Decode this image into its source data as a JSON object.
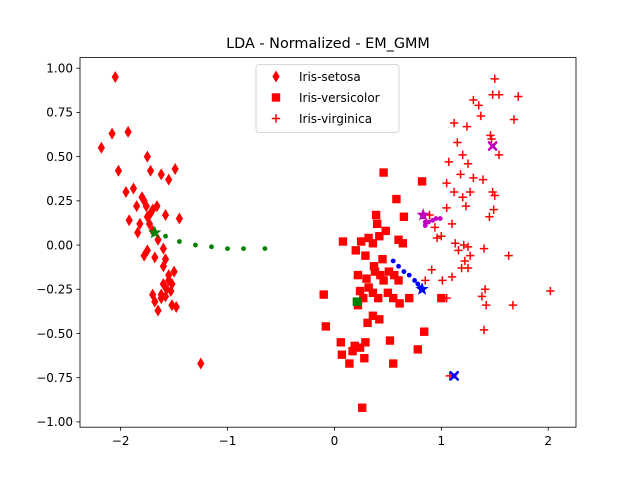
{
  "chart_data": {
    "type": "scatter",
    "title": "LDA - Normalized - EM_GMM",
    "xlabel": "",
    "ylabel": "",
    "xlim": [
      -2.38,
      2.26
    ],
    "ylim": [
      -1.03,
      1.06
    ],
    "xticks": [
      -2,
      -1,
      0,
      1,
      2
    ],
    "xtick_labels": [
      "−2",
      "−1",
      "0",
      "1",
      "2"
    ],
    "yticks": [
      -1.0,
      -0.75,
      -0.5,
      -0.25,
      0.0,
      0.25,
      0.5,
      0.75,
      1.0
    ],
    "ytick_labels": [
      "−1.00",
      "−0.75",
      "−0.50",
      "−0.25",
      "0.00",
      "0.25",
      "0.50",
      "0.75",
      "1.00"
    ],
    "grid": false,
    "legend_position": "top-center",
    "series": [
      {
        "name": "Iris-setosa",
        "marker": "diamond",
        "color": "#ff0000",
        "points": [
          [
            -2.05,
            0.95
          ],
          [
            -2.18,
            0.55
          ],
          [
            -2.08,
            0.63
          ],
          [
            -2.02,
            0.42
          ],
          [
            -1.93,
            0.64
          ],
          [
            -1.75,
            0.5
          ],
          [
            -1.72,
            0.42
          ],
          [
            -1.95,
            0.3
          ],
          [
            -1.88,
            0.32
          ],
          [
            -1.8,
            0.27
          ],
          [
            -1.78,
            0.25
          ],
          [
            -1.76,
            0.22
          ],
          [
            -1.72,
            0.18
          ],
          [
            -1.7,
            0.2
          ],
          [
            -1.75,
            0.16
          ],
          [
            -1.82,
            0.12
          ],
          [
            -1.85,
            0.22
          ],
          [
            -1.92,
            0.14
          ],
          [
            -1.62,
            0.4
          ],
          [
            -1.55,
            0.37
          ],
          [
            -1.49,
            0.43
          ],
          [
            -1.45,
            0.15
          ],
          [
            -1.58,
            0.17
          ],
          [
            -1.7,
            0.08
          ],
          [
            -1.65,
            0.03
          ],
          [
            -1.6,
            -0.02
          ],
          [
            -1.68,
            -0.07
          ],
          [
            -1.75,
            -0.03
          ],
          [
            -1.78,
            -0.06
          ],
          [
            -1.6,
            -0.12
          ],
          [
            -1.55,
            -0.17
          ],
          [
            -1.52,
            -0.22
          ],
          [
            -1.57,
            -0.25
          ],
          [
            -1.62,
            -0.28
          ],
          [
            -1.58,
            -0.29
          ],
          [
            -1.68,
            -0.32
          ],
          [
            -1.65,
            -0.37
          ],
          [
            -1.52,
            -0.34
          ],
          [
            -1.48,
            -0.35
          ],
          [
            -1.55,
            -0.2
          ],
          [
            -1.7,
            -0.28
          ],
          [
            -1.5,
            -0.15
          ],
          [
            -1.25,
            -0.67
          ],
          [
            -1.84,
            0.07
          ],
          [
            -1.58,
            -0.08
          ],
          [
            -1.73,
            0.12
          ],
          [
            -1.66,
            0.22
          ],
          [
            -1.62,
            -0.3
          ],
          [
            -1.53,
            -0.26
          ],
          [
            -1.6,
            -0.22
          ]
        ]
      },
      {
        "name": "Iris-versicolor",
        "marker": "square",
        "color": "#ff0000",
        "points": [
          [
            0.46,
            0.41
          ],
          [
            0.82,
            0.36
          ],
          [
            0.58,
            0.26
          ],
          [
            0.39,
            0.17
          ],
          [
            0.4,
            0.12
          ],
          [
            0.42,
            0.05
          ],
          [
            0.48,
            0.08
          ],
          [
            0.32,
            0.04
          ],
          [
            0.25,
            0.02
          ],
          [
            0.36,
            0.01
          ],
          [
            0.6,
            0.03
          ],
          [
            0.64,
            0.01
          ],
          [
            0.08,
            0.02
          ],
          [
            0.2,
            -0.03
          ],
          [
            0.29,
            -0.06
          ],
          [
            0.37,
            -0.12
          ],
          [
            0.45,
            -0.08
          ],
          [
            0.51,
            -0.15
          ],
          [
            0.56,
            -0.17
          ],
          [
            0.6,
            -0.2
          ],
          [
            0.22,
            -0.17
          ],
          [
            0.3,
            -0.19
          ],
          [
            0.38,
            -0.15
          ],
          [
            0.43,
            -0.17
          ],
          [
            0.46,
            -0.2
          ],
          [
            0.32,
            -0.24
          ],
          [
            0.36,
            -0.27
          ],
          [
            0.41,
            -0.3
          ],
          [
            0.5,
            -0.27
          ],
          [
            0.55,
            -0.3
          ],
          [
            0.61,
            -0.33
          ],
          [
            0.7,
            -0.3
          ],
          [
            0.27,
            -0.3
          ],
          [
            0.22,
            -0.34
          ],
          [
            0.36,
            -0.4
          ],
          [
            0.42,
            -0.42
          ],
          [
            0.31,
            -0.44
          ],
          [
            -0.1,
            -0.28
          ],
          [
            -0.08,
            -0.46
          ],
          [
            0.06,
            -0.55
          ],
          [
            0.19,
            -0.57
          ],
          [
            0.24,
            -0.58
          ],
          [
            0.29,
            -0.55
          ],
          [
            0.17,
            -0.6
          ],
          [
            0.07,
            -0.62
          ],
          [
            0.14,
            -0.67
          ],
          [
            0.28,
            -0.64
          ],
          [
            0.52,
            -0.54
          ],
          [
            0.55,
            -0.67
          ],
          [
            0.78,
            -0.59
          ],
          [
            0.84,
            -0.49
          ],
          [
            1.0,
            -0.3
          ],
          [
            0.26,
            -0.92
          ],
          [
            0.65,
            0.16
          ],
          [
            0.24,
            -0.26
          ]
        ]
      },
      {
        "name": "Iris-virginica",
        "marker": "plus",
        "color": "#ff0000",
        "points": [
          [
            1.5,
            0.94
          ],
          [
            1.48,
            0.85
          ],
          [
            1.54,
            0.85
          ],
          [
            1.72,
            0.84
          ],
          [
            1.3,
            0.82
          ],
          [
            1.37,
            0.73
          ],
          [
            1.12,
            0.69
          ],
          [
            1.47,
            0.6
          ],
          [
            1.54,
            0.51
          ],
          [
            1.24,
            0.67
          ],
          [
            1.68,
            0.71
          ],
          [
            1.07,
            0.47
          ],
          [
            1.2,
            0.51
          ],
          [
            1.25,
            0.46
          ],
          [
            1.18,
            0.4
          ],
          [
            1.3,
            0.38
          ],
          [
            1.39,
            0.37
          ],
          [
            1.05,
            0.35
          ],
          [
            1.12,
            0.3
          ],
          [
            1.2,
            0.27
          ],
          [
            1.27,
            0.3
          ],
          [
            1.48,
            0.3
          ],
          [
            1.5,
            0.28
          ],
          [
            1.45,
            0.16
          ],
          [
            1.49,
            0.2
          ],
          [
            1.23,
            0.22
          ],
          [
            1.05,
            0.21
          ],
          [
            1.1,
            0.12
          ],
          [
            0.94,
            0.1
          ],
          [
            1.0,
            0.05
          ],
          [
            1.13,
            0.01
          ],
          [
            1.21,
            0.0
          ],
          [
            1.16,
            -0.03
          ],
          [
            1.25,
            -0.01
          ],
          [
            1.22,
            -0.09
          ],
          [
            1.25,
            -0.13
          ],
          [
            1.19,
            -0.13
          ],
          [
            1.27,
            -0.06
          ],
          [
            1.4,
            -0.02
          ],
          [
            1.63,
            -0.06
          ],
          [
            1.1,
            -0.18
          ],
          [
            1.01,
            -0.2
          ],
          [
            1.41,
            -0.25
          ],
          [
            1.38,
            -0.29
          ],
          [
            1.42,
            -0.34
          ],
          [
            1.67,
            -0.34
          ],
          [
            2.02,
            -0.26
          ],
          [
            1.05,
            -0.3
          ],
          [
            1.4,
            -0.48
          ],
          [
            1.08,
            -0.74
          ],
          [
            0.89,
            0.17
          ],
          [
            0.96,
            0.04
          ],
          [
            0.85,
            -0.2
          ],
          [
            0.91,
            -0.14
          ],
          [
            1.46,
            0.62
          ],
          [
            1.35,
            0.79
          ],
          [
            1.15,
            0.58
          ]
        ]
      }
    ],
    "paths": [
      {
        "color": "#008000",
        "points": [
          [
            -1.68,
            0.07
          ],
          [
            -1.58,
            0.05
          ],
          [
            -1.45,
            0.02
          ],
          [
            -1.3,
            0.0
          ],
          [
            -1.15,
            -0.01
          ],
          [
            -1.0,
            -0.02
          ],
          [
            -0.85,
            -0.02
          ],
          [
            -0.65,
            -0.02
          ]
        ]
      },
      {
        "color": "#0000ff",
        "points": [
          [
            1.12,
            -0.74
          ],
          [
            0.55,
            -0.09
          ],
          [
            0.6,
            -0.12
          ],
          [
            0.65,
            -0.15
          ],
          [
            0.7,
            -0.17
          ],
          [
            0.75,
            -0.2
          ],
          [
            0.78,
            -0.22
          ],
          [
            0.8,
            -0.24
          ]
        ]
      },
      {
        "color": "#bf00bf",
        "points": [
          [
            1.48,
            0.56
          ],
          [
            0.83,
            0.16
          ],
          [
            0.85,
            0.13
          ],
          [
            0.88,
            0.13
          ],
          [
            0.92,
            0.14
          ],
          [
            0.95,
            0.15
          ],
          [
            0.99,
            0.15
          ],
          [
            0.85,
            0.11
          ]
        ]
      }
    ],
    "centroids": [
      {
        "marker": "star",
        "color": "#008000",
        "x": -1.68,
        "y": 0.07
      },
      {
        "marker": "square",
        "color": "#008000",
        "x": 0.21,
        "y": -0.32
      },
      {
        "marker": "star",
        "color": "#0000ff",
        "x": 0.82,
        "y": -0.25
      },
      {
        "marker": "x",
        "color": "#0000ff",
        "x": 1.12,
        "y": -0.74
      },
      {
        "marker": "star",
        "color": "#bf00bf",
        "x": 0.83,
        "y": 0.17
      },
      {
        "marker": "x",
        "color": "#bf00bf",
        "x": 1.48,
        "y": 0.56
      }
    ]
  }
}
